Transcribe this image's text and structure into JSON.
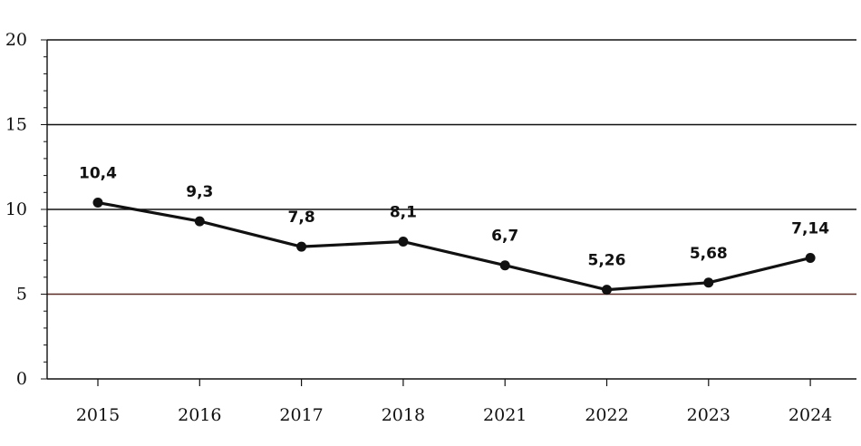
{
  "chart_data": {
    "type": "line",
    "title": "",
    "xlabel": "",
    "ylabel": "",
    "categories": [
      "2015",
      "2016",
      "2017",
      "2018",
      "2021",
      "2022",
      "2023",
      "2024"
    ],
    "series": [
      {
        "values": [
          10.4,
          9.3,
          7.8,
          8.1,
          6.7,
          5.26,
          5.68,
          7.14
        ],
        "labels": [
          "10,4",
          "9,3",
          "7,8",
          "8,1",
          "6,7",
          "5,26",
          "5,68",
          "7,14"
        ]
      }
    ],
    "ylim": [
      0,
      20
    ],
    "yticks": [
      "0",
      "5",
      "10",
      "15",
      "20"
    ],
    "grid": true,
    "legend": "none",
    "colors": {
      "line": "#111111",
      "grid": "#111111",
      "grid_at_5": "#5a2a24"
    }
  }
}
